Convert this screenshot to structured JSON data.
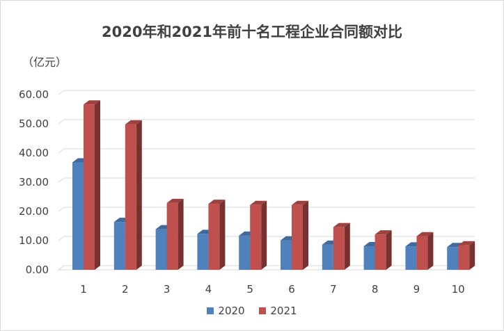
{
  "chart_data": {
    "type": "bar",
    "title": "2020年和2021年前十名工程企业合同额对比",
    "unit_label": "（亿元）",
    "categories": [
      "1",
      "2",
      "3",
      "4",
      "5",
      "6",
      "7",
      "8",
      "9",
      "10"
    ],
    "series": [
      {
        "name": "2020",
        "color": "#4f81bd",
        "values": [
          36.8,
          16.4,
          13.9,
          12.3,
          11.7,
          10.1,
          8.6,
          8.1,
          8.0,
          7.8
        ]
      },
      {
        "name": "2021",
        "color": "#c0504d",
        "values": [
          56.6,
          49.8,
          22.9,
          22.6,
          22.2,
          22.2,
          14.6,
          12.1,
          11.5,
          8.4
        ]
      }
    ],
    "ylim": [
      0,
      60
    ],
    "yticks": [
      "0.00",
      "10.00",
      "20.00",
      "30.00",
      "40.00",
      "50.00",
      "60.00"
    ],
    "grid": true,
    "legend": "bottom"
  }
}
